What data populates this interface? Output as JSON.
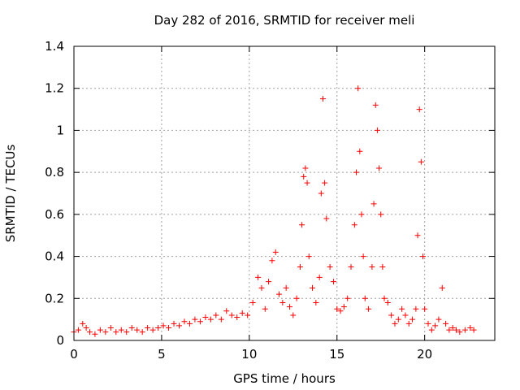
{
  "chart_data": {
    "type": "scatter",
    "title": "Day 282 of 2016, SRMTID for receiver meli",
    "xlabel": "GPS time / hours",
    "ylabel": "SRMTID / TECUs",
    "xlim": [
      0,
      24
    ],
    "ylim": [
      0,
      1.4
    ],
    "xticks": [
      0,
      5,
      10,
      15,
      20
    ],
    "xtick_labels": [
      "0",
      "5",
      "10",
      "15",
      "20"
    ],
    "yticks": [
      0,
      0.2,
      0.4,
      0.6,
      0.8,
      1.0,
      1.2,
      1.4
    ],
    "ytick_labels": [
      "0",
      "0.2",
      "0.4",
      "0.6",
      "0.8",
      "1",
      "1.2",
      "1.4"
    ],
    "grid": true,
    "marker": "+",
    "series": [
      {
        "name": "SRMTID",
        "color": "#ff0000",
        "x": [
          0.0,
          0.25,
          0.5,
          0.7,
          0.9,
          1.2,
          1.5,
          1.8,
          2.1,
          2.4,
          2.7,
          3.0,
          3.3,
          3.6,
          3.9,
          4.2,
          4.5,
          4.8,
          5.1,
          5.4,
          5.7,
          6.0,
          6.3,
          6.6,
          6.9,
          7.2,
          7.5,
          7.8,
          8.1,
          8.4,
          8.7,
          9.0,
          9.3,
          9.6,
          9.9,
          10.2,
          10.5,
          10.7,
          10.9,
          11.1,
          11.3,
          11.5,
          11.7,
          11.9,
          12.1,
          12.3,
          12.5,
          12.7,
          12.9,
          13.0,
          13.1,
          13.2,
          13.3,
          13.4,
          13.6,
          13.8,
          14.0,
          14.1,
          14.2,
          14.3,
          14.4,
          14.6,
          14.8,
          15.0,
          15.2,
          15.4,
          15.6,
          15.8,
          16.0,
          16.1,
          16.2,
          16.3,
          16.4,
          16.5,
          16.6,
          16.8,
          17.0,
          17.1,
          17.2,
          17.3,
          17.4,
          17.5,
          17.6,
          17.7,
          17.9,
          18.1,
          18.3,
          18.5,
          18.7,
          18.9,
          19.1,
          19.3,
          19.5,
          19.6,
          19.7,
          19.8,
          19.9,
          20.0,
          20.2,
          20.4,
          20.6,
          20.8,
          21.0,
          21.2,
          21.4,
          21.6,
          21.8,
          22.0,
          22.3,
          22.6,
          22.8
        ],
        "y": [
          0.04,
          0.05,
          0.08,
          0.06,
          0.04,
          0.03,
          0.05,
          0.04,
          0.06,
          0.04,
          0.05,
          0.04,
          0.06,
          0.05,
          0.04,
          0.06,
          0.05,
          0.06,
          0.07,
          0.06,
          0.08,
          0.07,
          0.09,
          0.08,
          0.1,
          0.09,
          0.11,
          0.1,
          0.12,
          0.1,
          0.14,
          0.12,
          0.11,
          0.13,
          0.12,
          0.18,
          0.3,
          0.25,
          0.15,
          0.28,
          0.38,
          0.42,
          0.22,
          0.18,
          0.25,
          0.16,
          0.12,
          0.2,
          0.35,
          0.55,
          0.78,
          0.82,
          0.75,
          0.4,
          0.25,
          0.18,
          0.3,
          0.7,
          1.15,
          0.75,
          0.58,
          0.35,
          0.28,
          0.15,
          0.14,
          0.16,
          0.2,
          0.35,
          0.55,
          0.8,
          1.2,
          0.9,
          0.6,
          0.4,
          0.2,
          0.15,
          0.35,
          0.65,
          1.12,
          1.0,
          0.82,
          0.6,
          0.35,
          0.2,
          0.18,
          0.12,
          0.08,
          0.1,
          0.15,
          0.12,
          0.08,
          0.1,
          0.15,
          0.5,
          1.1,
          0.85,
          0.4,
          0.15,
          0.08,
          0.05,
          0.07,
          0.1,
          0.25,
          0.08,
          0.05,
          0.06,
          0.05,
          0.04,
          0.05,
          0.06,
          0.05
        ]
      }
    ]
  }
}
